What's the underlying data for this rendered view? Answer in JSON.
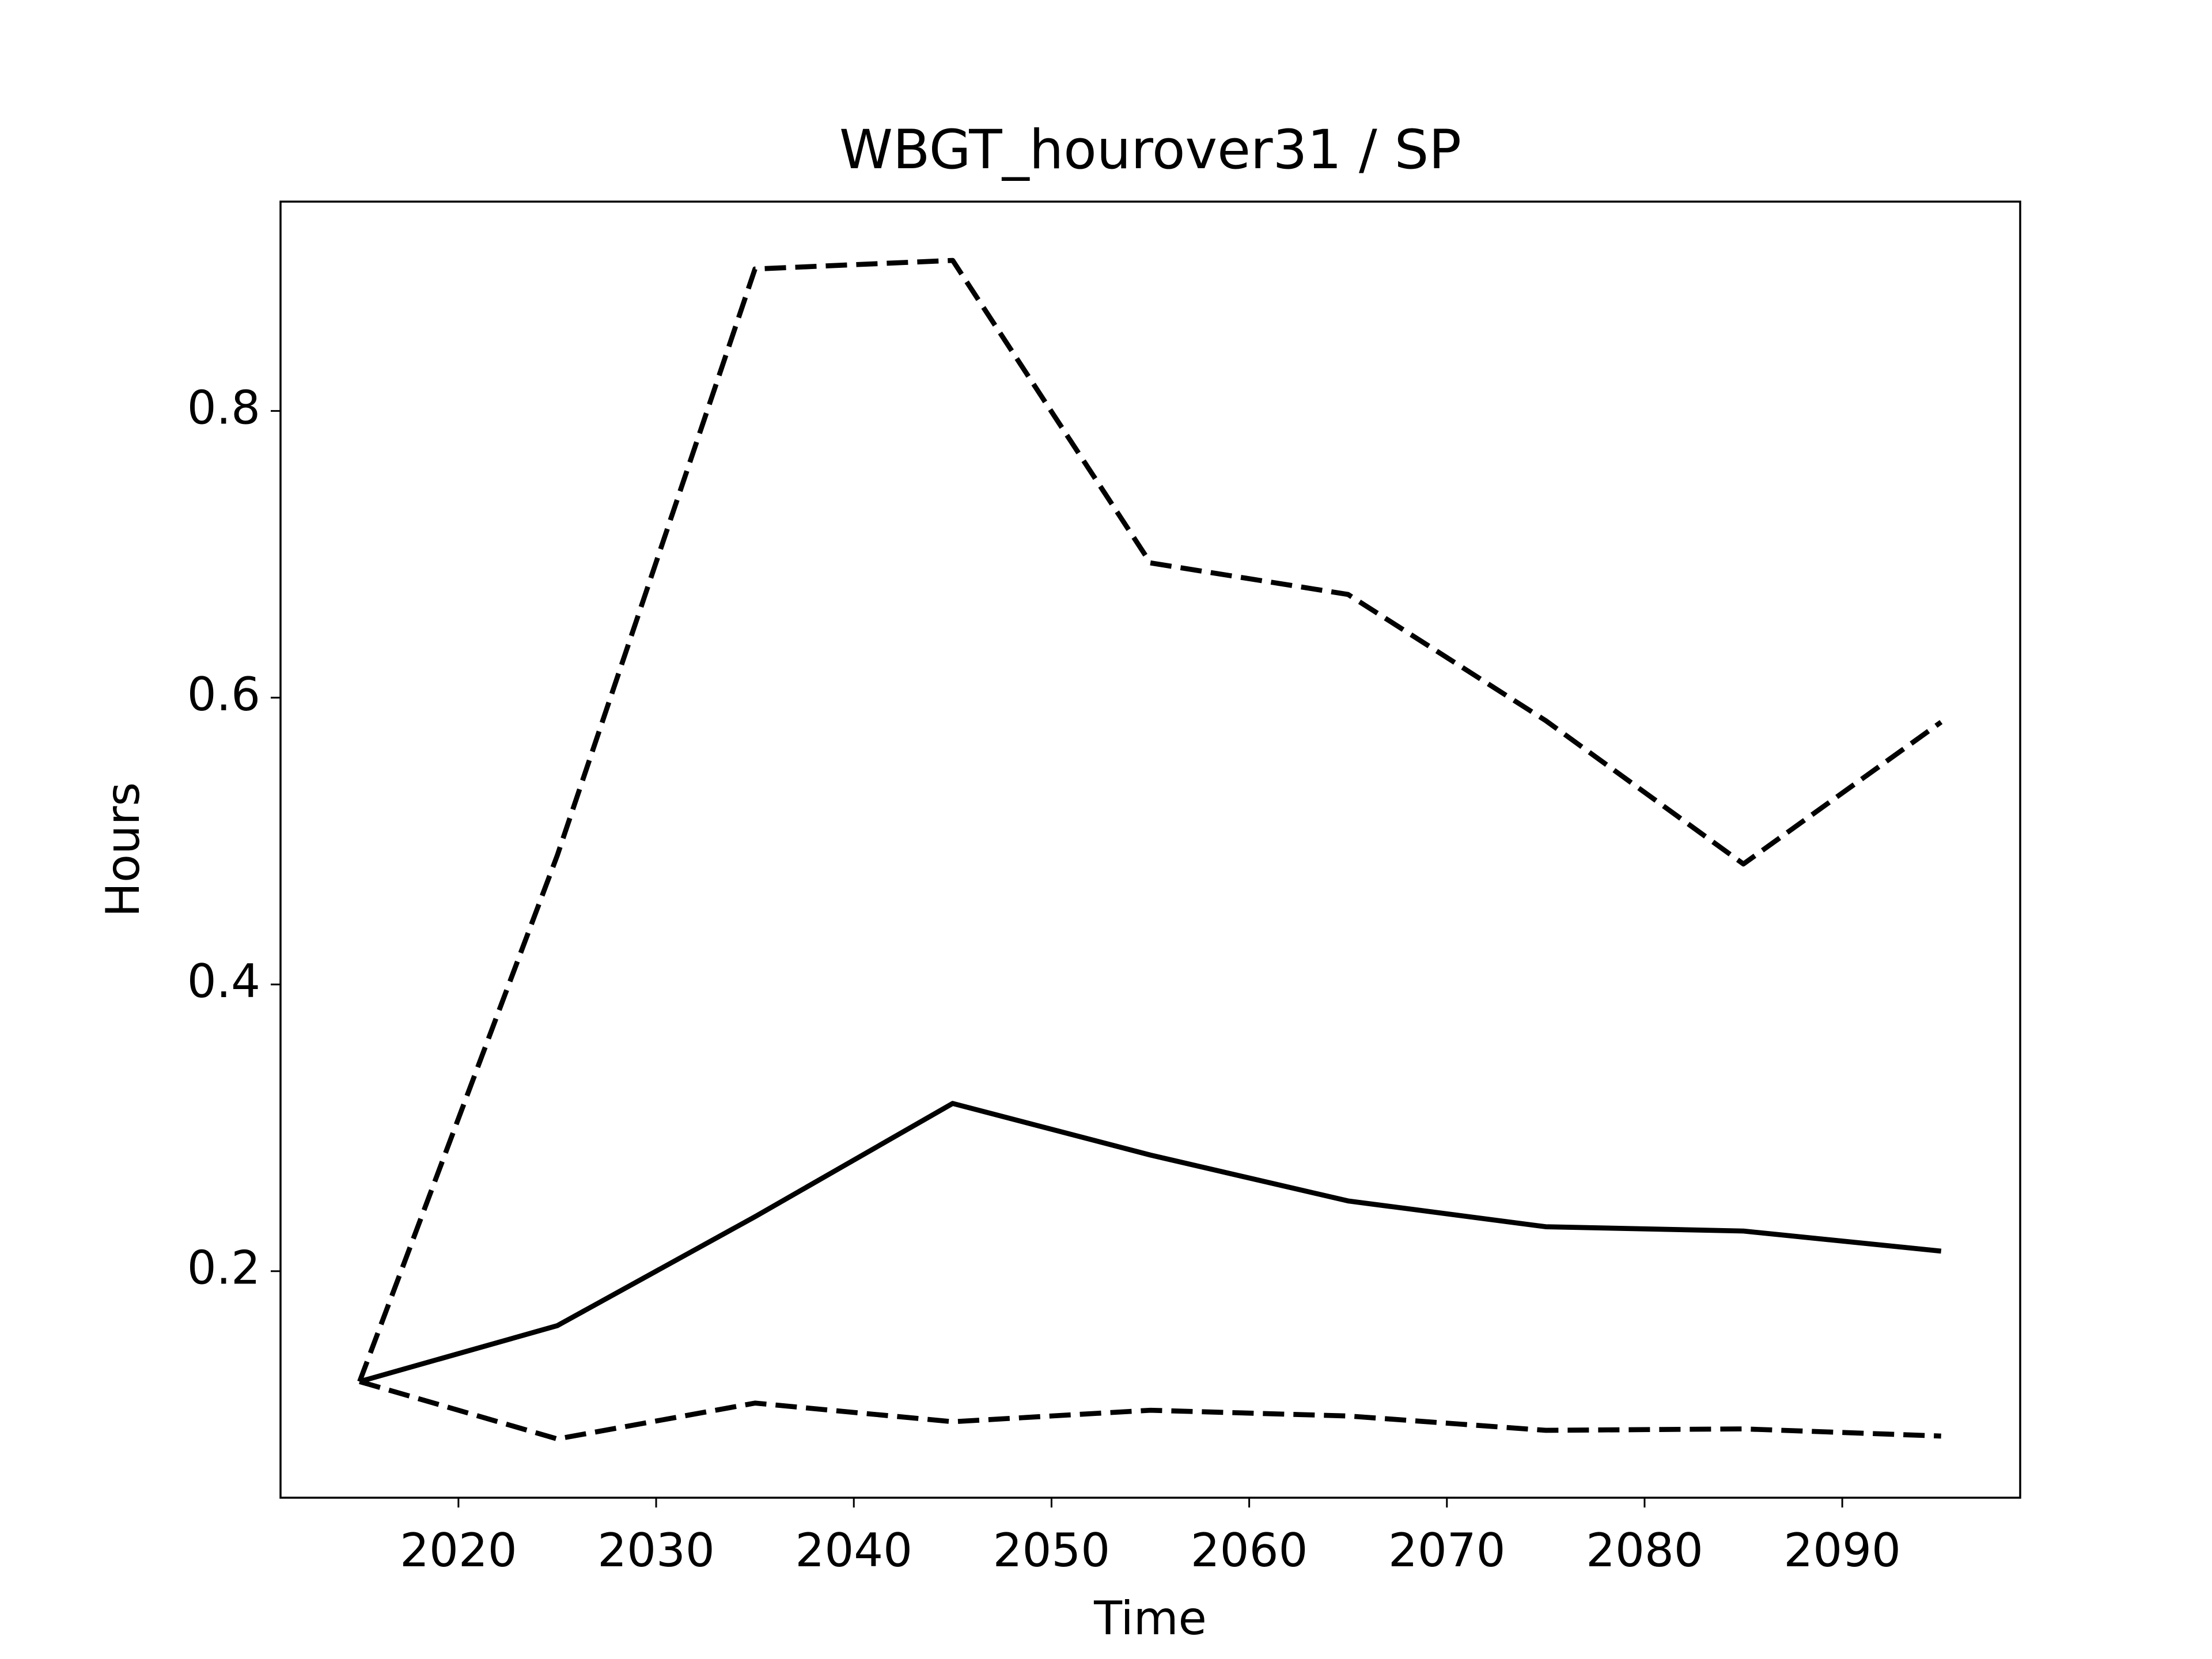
{
  "chart_data": {
    "type": "line",
    "title": "WBGT_hourover31 / SP",
    "x_label": "Time",
    "y_label": "Hours",
    "x": [
      2015,
      2025,
      2035,
      2045,
      2055,
      2065,
      2075,
      2085,
      2095
    ],
    "series": [
      {
        "color": "#000000",
        "linestyle": "solid",
        "values": [
          0.123,
          0.162,
          0.238,
          0.317,
          0.281,
          0.249,
          0.231,
          0.228,
          0.214
        ]
      },
      {
        "color": "#000000",
        "linestyle": "dashed",
        "values": [
          0.123,
          0.49,
          0.899,
          0.905,
          0.694,
          0.672,
          0.584,
          0.484,
          0.583
        ]
      },
      {
        "color": "#000000",
        "linestyle": "dashed",
        "values": [
          0.123,
          0.083,
          0.108,
          0.095,
          0.103,
          0.099,
          0.089,
          0.09,
          0.085
        ]
      }
    ],
    "xlim": [
      2011,
      2099
    ],
    "xticks": [
      2020,
      2030,
      2040,
      2050,
      2060,
      2070,
      2080,
      2090
    ],
    "ylim": [
      0.042,
      0.946
    ],
    "yticks": [
      0.2,
      0.4,
      0.6,
      0.8
    ],
    "grid": false
  }
}
